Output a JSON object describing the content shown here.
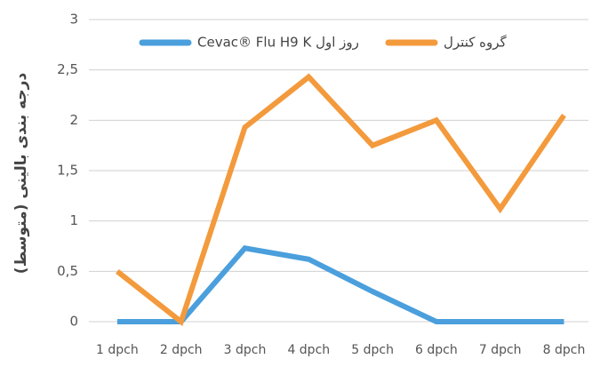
{
  "chart_data": {
    "type": "line",
    "y_label": "درجه بندی بالینی (متوسط)",
    "categories": [
      "1 dpch",
      "2 dpch",
      "3 dpch",
      "4 dpch",
      "5 dpch",
      "6 dpch",
      "7 dpch",
      "8 dpch"
    ],
    "series": [
      {
        "name": "Cevac® Flu H9 K روز اول",
        "color": "#4a9fdc",
        "values": [
          0,
          0,
          0.73,
          0.62,
          0.3,
          0,
          0,
          0
        ]
      },
      {
        "name": "گروه کنترل",
        "color": "#f39a3d",
        "values": [
          0.5,
          0,
          1.93,
          2.43,
          1.75,
          2.0,
          1.12,
          2.05
        ]
      }
    ],
    "ylim": [
      0,
      3
    ],
    "yticks": [
      0,
      {
        "value": 0.5,
        "label": "0,5"
      },
      1,
      {
        "value": 1.5,
        "label": "1,5"
      },
      2,
      {
        "value": 2.5,
        "label": "2,5"
      },
      3
    ],
    "grid": true
  }
}
